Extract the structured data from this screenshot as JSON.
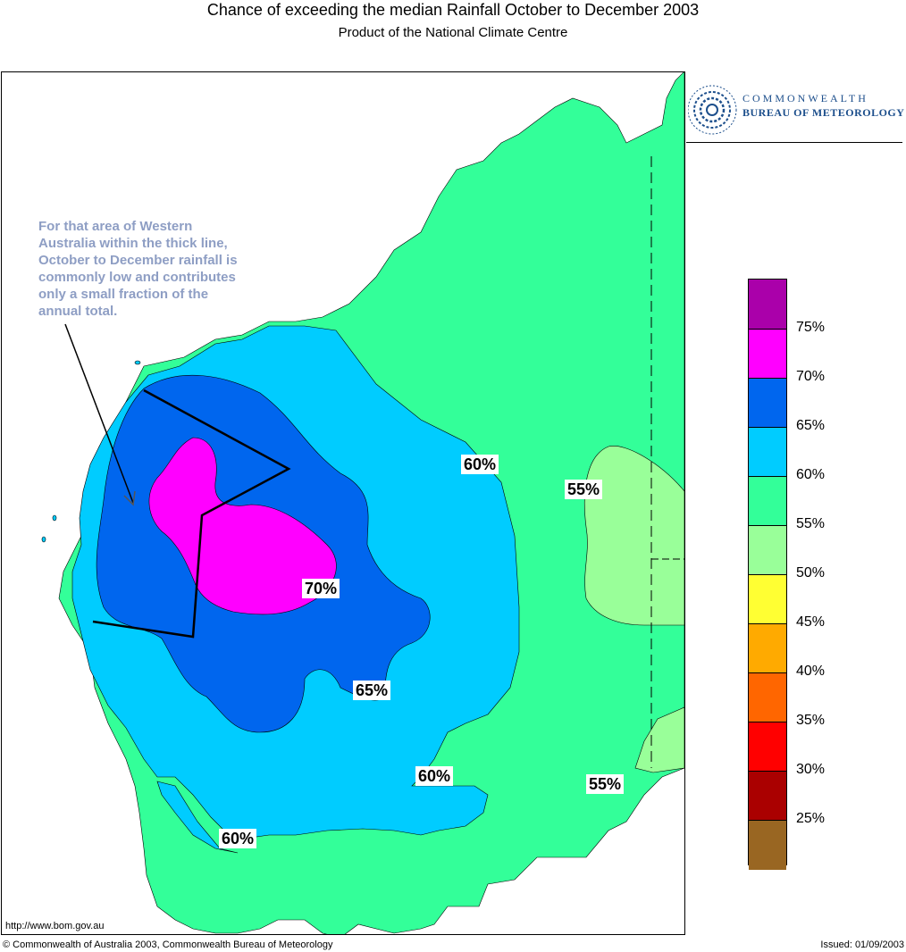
{
  "title": "Chance of exceeding the median Rainfall October to December 2003",
  "subtitle": "Product of the National Climate Centre",
  "logo": {
    "line1": "COMMONWEALTH",
    "line2": "BUREAU OF METEOROLOGY"
  },
  "note": "For that area of Western Australia within the thick line, October to December rainfall is commonly low and contributes only a small fraction of the annual total.",
  "contour_labels": [
    "60%",
    "55%",
    "70%",
    "65%",
    "60%",
    "55%",
    "60%"
  ],
  "legend": {
    "labels": [
      "75%",
      "70%",
      "65%",
      "60%",
      "55%",
      "50%",
      "45%",
      "40%",
      "35%",
      "30%",
      "25%"
    ],
    "colors": [
      "#aa00aa",
      "#ff00ff",
      "#0066ee",
      "#00ccff",
      "#33ff99",
      "#99ff99",
      "#ffff33",
      "#ffaa00",
      "#ff6600",
      "#ff0000",
      "#aa0000",
      "#996622"
    ]
  },
  "map_colors": {
    "c55_60": "#33ff99",
    "c50_55": "#99ff99",
    "c60_65": "#00ccff",
    "c65_70": "#0066ee",
    "c70_75": "#ff00ff"
  },
  "footer": {
    "url": "http://www.bom.gov.au",
    "copyright": "© Commonwealth of Australia 2003, Commonwealth Bureau of Meteorology",
    "issued": "Issued: 01/09/2003"
  }
}
